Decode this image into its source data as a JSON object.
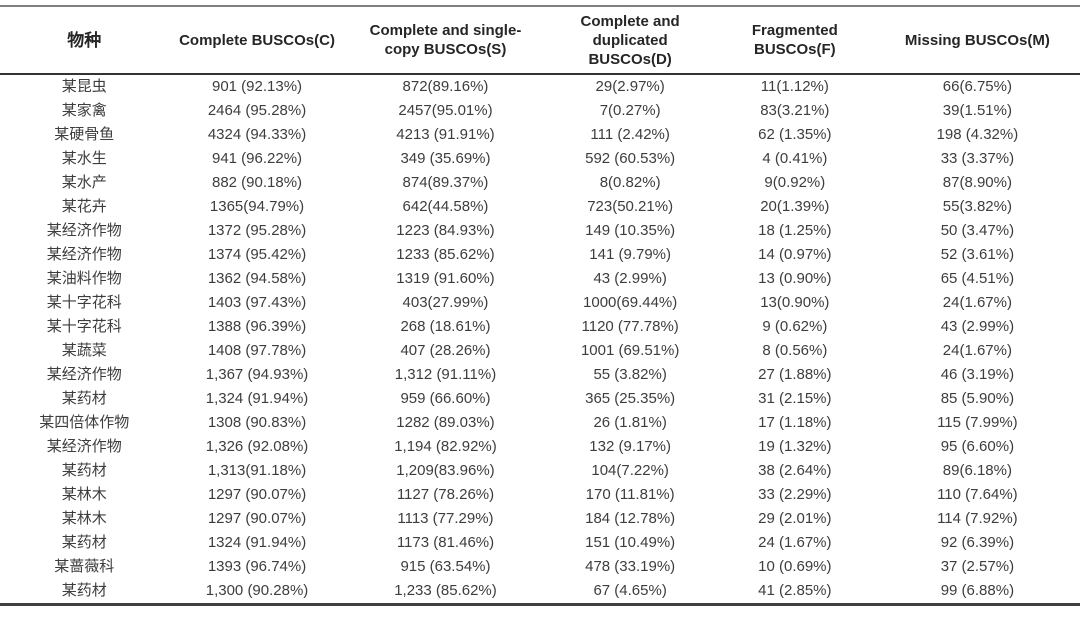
{
  "table": {
    "columns": [
      "物种",
      "Complete BUSCOs(C)",
      "Complete and single-copy BUSCOs(S)",
      "Complete and duplicated BUSCOs(D)",
      "Fragmented BUSCOs(F)",
      "Missing BUSCOs(M)"
    ],
    "rows": [
      [
        "某昆虫",
        "901 (92.13%)",
        "872(89.16%)",
        "29(2.97%)",
        "11(1.12%)",
        "66(6.75%)"
      ],
      [
        "某家禽",
        "2464 (95.28%)",
        "2457(95.01%)",
        "7(0.27%)",
        "83(3.21%)",
        "39(1.51%)"
      ],
      [
        "某硬骨鱼",
        "4324 (94.33%)",
        "4213 (91.91%)",
        "111 (2.42%)",
        "62 (1.35%)",
        "198 (4.32%)"
      ],
      [
        "某水生",
        "941 (96.22%)",
        "349 (35.69%)",
        "592 (60.53%)",
        "4 (0.41%)",
        "33 (3.37%)"
      ],
      [
        "某水产",
        "882 (90.18%)",
        "874(89.37%)",
        "8(0.82%)",
        "9(0.92%)",
        "87(8.90%)"
      ],
      [
        "某花卉",
        "1365(94.79%)",
        "642(44.58%)",
        "723(50.21%)",
        "20(1.39%)",
        "55(3.82%)"
      ],
      [
        "某经济作物",
        "1372 (95.28%)",
        "1223 (84.93%)",
        "149 (10.35%)",
        "18 (1.25%)",
        "50 (3.47%)"
      ],
      [
        "某经济作物",
        "1374 (95.42%)",
        "1233 (85.62%)",
        "141 (9.79%)",
        "14 (0.97%)",
        "52 (3.61%)"
      ],
      [
        "某油料作物",
        "1362 (94.58%)",
        "1319 (91.60%)",
        "43 (2.99%)",
        "13 (0.90%)",
        "65 (4.51%)"
      ],
      [
        "某十字花科",
        "1403 (97.43%)",
        "403(27.99%)",
        "1000(69.44%)",
        "13(0.90%)",
        "24(1.67%)"
      ],
      [
        "某十字花科",
        "1388 (96.39%)",
        "268 (18.61%)",
        "1120 (77.78%)",
        "9 (0.62%)",
        "43 (2.99%)"
      ],
      [
        "某蔬菜",
        "1408 (97.78%)",
        "407 (28.26%)",
        "1001 (69.51%)",
        "8 (0.56%)",
        "24(1.67%)"
      ],
      [
        "某经济作物",
        "1,367 (94.93%)",
        "1,312 (91.11%)",
        "55 (3.82%)",
        "27 (1.88%)",
        "46 (3.19%)"
      ],
      [
        "某药材",
        "1,324 (91.94%)",
        "959 (66.60%)",
        "365 (25.35%)",
        "31 (2.15%)",
        "85 (5.90%)"
      ],
      [
        "某四倍体作物",
        "1308 (90.83%)",
        "1282 (89.03%)",
        "26 (1.81%)",
        "17 (1.18%)",
        "115 (7.99%)"
      ],
      [
        "某经济作物",
        "1,326 (92.08%)",
        "1,194 (82.92%)",
        "132 (9.17%)",
        "19 (1.32%)",
        "95 (6.60%)"
      ],
      [
        "某药材",
        "1,313(91.18%)",
        "1,209(83.96%)",
        "104(7.22%)",
        "38 (2.64%)",
        "89(6.18%)"
      ],
      [
        "某林木",
        "1297 (90.07%)",
        "1127 (78.26%)",
        "170 (11.81%)",
        "33 (2.29%)",
        "110 (7.64%)"
      ],
      [
        "某林木",
        "1297 (90.07%)",
        "1113 (77.29%)",
        "184 (12.78%)",
        "29 (2.01%)",
        "114 (7.92%)"
      ],
      [
        "某药材",
        "1324 (91.94%)",
        "1173 (81.46%)",
        "151 (10.49%)",
        "24 (1.67%)",
        "92 (6.39%)"
      ],
      [
        "某蔷薇科",
        "1393 (96.74%)",
        "915 (63.54%)",
        "478 (33.19%)",
        "10 (0.69%)",
        "37 (2.57%)"
      ],
      [
        "某药材",
        "1,300 (90.28%)",
        "1,233 (85.62%)",
        "67 (4.65%)",
        "41 (2.85%)",
        "99 (6.88%)"
      ]
    ]
  },
  "colors": {
    "background": "#ffffff",
    "body_text": "#3d3d3d",
    "header_text": "#262626",
    "top_rule": "#7f7f7f",
    "header_rule": "#333333",
    "bottom_rule": "#404040"
  }
}
